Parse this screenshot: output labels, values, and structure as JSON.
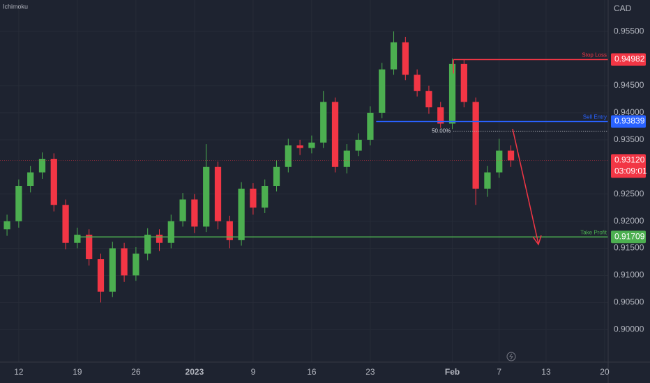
{
  "chart_data": {
    "type": "candlestick",
    "indicator": "Ichimoku",
    "currency": "CAD",
    "x": [
      -1,
      0,
      1,
      2,
      3,
      4,
      5,
      6,
      7,
      8,
      9,
      10,
      11,
      12,
      13,
      14,
      15,
      16,
      17,
      18,
      19,
      20,
      21,
      22,
      23,
      24,
      25,
      26,
      27,
      28,
      29,
      30,
      31,
      32,
      33,
      34,
      35,
      36,
      37,
      38,
      39,
      40,
      41,
      42
    ],
    "open": [
      0.9185,
      0.92,
      0.9265,
      0.929,
      0.9315,
      0.923,
      0.916,
      0.9175,
      0.913,
      0.907,
      0.915,
      0.91,
      0.914,
      0.9175,
      0.916,
      0.92,
      0.924,
      0.919,
      0.93,
      0.92,
      0.9165,
      0.926,
      0.9225,
      0.9265,
      0.93,
      0.934,
      0.9335,
      0.9345,
      0.942,
      0.93,
      0.933,
      0.935,
      0.94,
      0.948,
      0.953,
      0.947,
      0.944,
      0.941,
      0.938,
      0.949,
      0.942,
      0.926,
      0.929,
      0.933
    ],
    "high": [
      0.9212,
      0.9277,
      0.9302,
      0.9327,
      0.9325,
      0.924,
      0.9188,
      0.9185,
      0.914,
      0.9162,
      0.916,
      0.9152,
      0.9187,
      0.9185,
      0.9212,
      0.9252,
      0.925,
      0.9342,
      0.931,
      0.921,
      0.9272,
      0.927,
      0.9277,
      0.9312,
      0.9352,
      0.935,
      0.9358,
      0.944,
      0.9428,
      0.9342,
      0.9362,
      0.9412,
      0.9492,
      0.955,
      0.954,
      0.948,
      0.945,
      0.942,
      0.95,
      0.9498,
      0.9428,
      0.9302,
      0.9352,
      0.934
    ],
    "low": [
      0.9173,
      0.9188,
      0.9253,
      0.9278,
      0.9218,
      0.9148,
      0.915,
      0.9118,
      0.905,
      0.906,
      0.9088,
      0.909,
      0.9128,
      0.9145,
      0.915,
      0.919,
      0.9178,
      0.918,
      0.9185,
      0.915,
      0.9155,
      0.9212,
      0.9215,
      0.9255,
      0.929,
      0.9322,
      0.9325,
      0.9335,
      0.929,
      0.9288,
      0.932,
      0.934,
      0.939,
      0.947,
      0.946,
      0.943,
      0.9398,
      0.9372,
      0.937,
      0.941,
      0.923,
      0.9245,
      0.928,
      0.93
    ],
    "close": [
      0.92,
      0.9265,
      0.929,
      0.9315,
      0.923,
      0.916,
      0.9175,
      0.913,
      0.907,
      0.915,
      0.91,
      0.914,
      0.9175,
      0.916,
      0.92,
      0.924,
      0.919,
      0.93,
      0.92,
      0.9165,
      0.926,
      0.9225,
      0.9265,
      0.93,
      0.934,
      0.9335,
      0.9345,
      0.942,
      0.93,
      0.933,
      0.935,
      0.94,
      0.948,
      0.953,
      0.947,
      0.944,
      0.941,
      0.938,
      0.949,
      0.942,
      0.926,
      0.929,
      0.933,
      0.9312
    ],
    "up_color": "#4caf50",
    "down_color": "#f23645",
    "xlim": [
      -1.6,
      50.3
    ],
    "xticks": [
      {
        "value": 0,
        "label": "12"
      },
      {
        "value": 5,
        "label": "19"
      },
      {
        "value": 10,
        "label": "26"
      },
      {
        "value": 15,
        "label": "2023"
      },
      {
        "value": 20,
        "label": "9"
      },
      {
        "value": 25,
        "label": "16"
      },
      {
        "value": 30,
        "label": "23"
      },
      {
        "value": 37,
        "label": "Feb"
      },
      {
        "value": 41,
        "label": "7"
      },
      {
        "value": 45,
        "label": "13"
      },
      {
        "value": 50,
        "label": "20"
      }
    ],
    "ylim": [
      0.894,
      0.9608
    ],
    "yticks": [
      {
        "value": 0.955,
        "label": "0.95500"
      },
      {
        "value": 0.945,
        "label": "0.94500"
      },
      {
        "value": 0.94,
        "label": "0.94000"
      },
      {
        "value": 0.935,
        "label": "0.93500"
      },
      {
        "value": 0.925,
        "label": "0.92500"
      },
      {
        "value": 0.92,
        "label": "0.92000"
      },
      {
        "value": 0.915,
        "label": "0.91500"
      },
      {
        "value": 0.91,
        "label": "0.91000"
      },
      {
        "value": 0.905,
        "label": "0.90500"
      },
      {
        "value": 0.9,
        "label": "0.90000"
      }
    ],
    "levels": [
      {
        "name": "Stop Loss",
        "value": 0.94982,
        "start": 37.1,
        "color": "#f23645"
      },
      {
        "name": "Sell Entry",
        "value": 0.93839,
        "start": 30.5,
        "color": "#2962ff"
      },
      {
        "name": "Take Profit",
        "value": 0.91709,
        "start": 5.2,
        "color": "#4caf50"
      }
    ],
    "fib": {
      "name": "50.00%",
      "value": 0.9366,
      "start": 37.1
    },
    "last_price": {
      "value": 0.9312,
      "value_label": "0.93120",
      "countdown": "03:09:01",
      "color": "#f23645"
    }
  }
}
